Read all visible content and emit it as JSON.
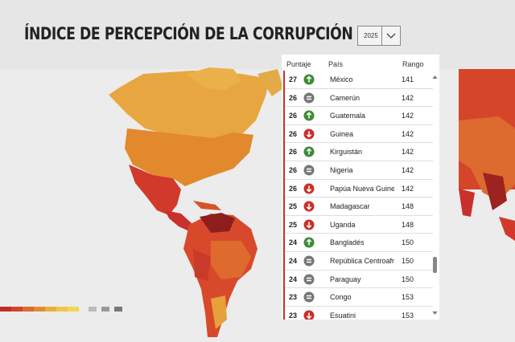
{
  "header": {
    "title": "ÍNDICE DE PERCEPCIÓN DE LA CORRUPCIÓN",
    "year": "2025"
  },
  "table": {
    "columns": [
      "Puntaje",
      "País",
      "Rango"
    ],
    "rows": [
      {
        "score": "27",
        "country": "México",
        "rank": "141",
        "trend": "up"
      },
      {
        "score": "26",
        "country": "Camerún",
        "rank": "142",
        "trend": "same"
      },
      {
        "score": "26",
        "country": "Guatemala",
        "rank": "142",
        "trend": "up"
      },
      {
        "score": "26",
        "country": "Guinea",
        "rank": "142",
        "trend": "down"
      },
      {
        "score": "26",
        "country": "Kirguistán",
        "rank": "142",
        "trend": "up"
      },
      {
        "score": "26",
        "country": "Nigeria",
        "rank": "142",
        "trend": "same"
      },
      {
        "score": "26",
        "country": "Papúa Nueva Guinea",
        "rank": "142",
        "trend": "down"
      },
      {
        "score": "25",
        "country": "Madagascar",
        "rank": "148",
        "trend": "down"
      },
      {
        "score": "25",
        "country": "Uganda",
        "rank": "148",
        "trend": "down"
      },
      {
        "score": "24",
        "country": "Bangladés",
        "rank": "150",
        "trend": "up"
      },
      {
        "score": "24",
        "country": "República Centroafri",
        "rank": "150",
        "trend": "same"
      },
      {
        "score": "24",
        "country": "Paraguay",
        "rank": "150",
        "trend": "same"
      },
      {
        "score": "23",
        "country": "Congo",
        "rank": "153",
        "trend": "same"
      },
      {
        "score": "23",
        "country": "Esuatini",
        "rank": "153",
        "trend": "down"
      }
    ]
  }
}
